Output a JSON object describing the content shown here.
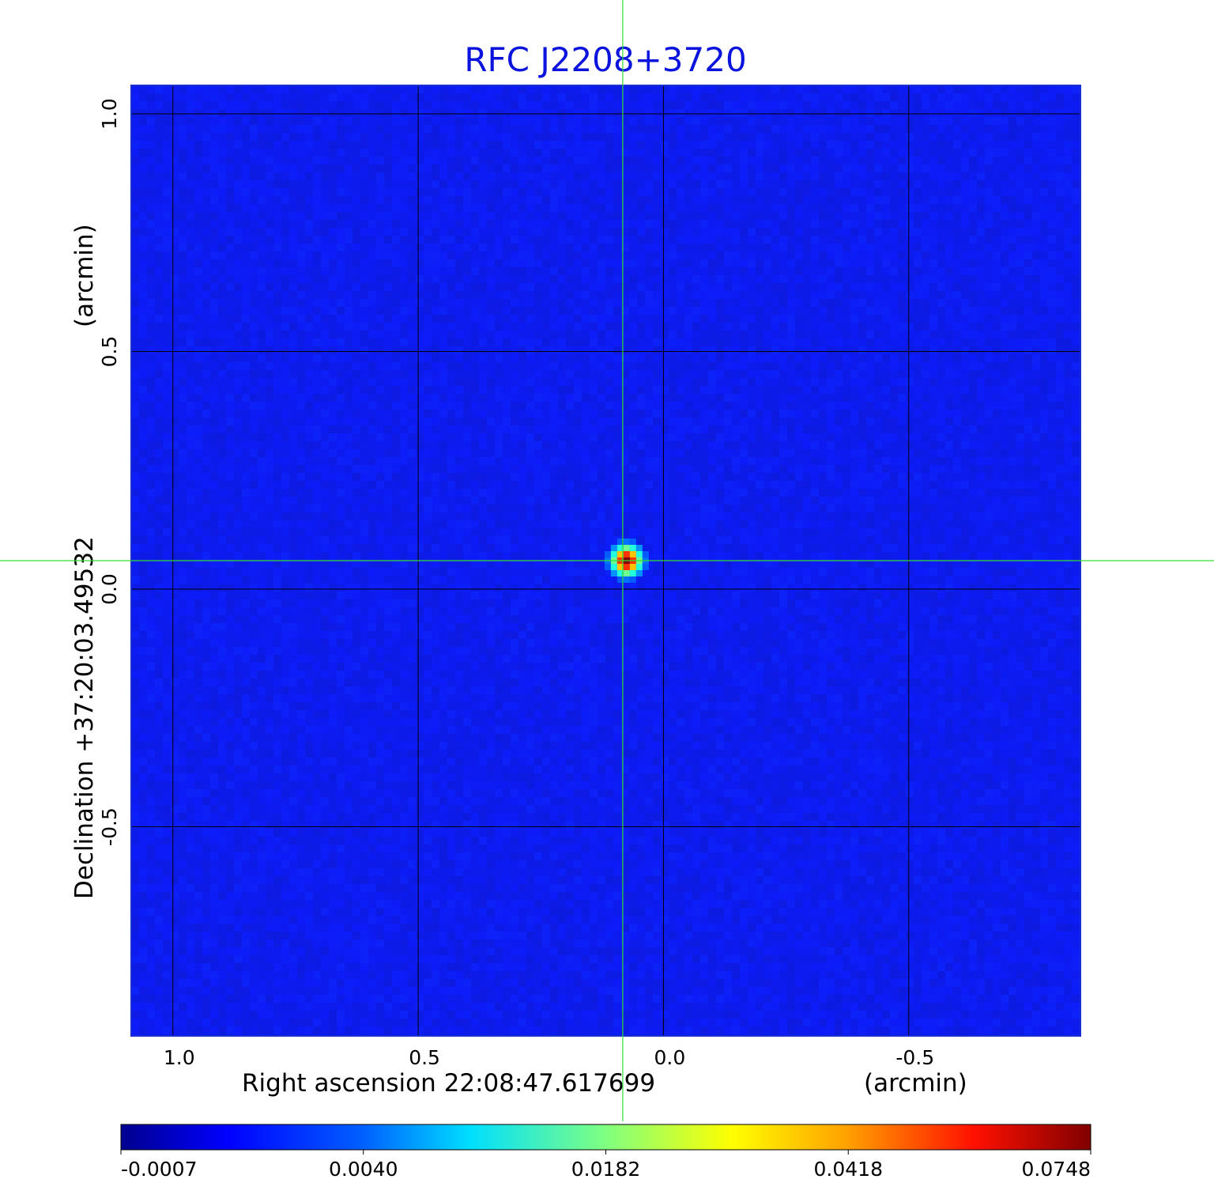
{
  "chart_data": {
    "type": "heatmap",
    "title": "RFC J2208+3720",
    "xlabel": "Right ascension  22:08:47.617699",
    "xunit": "(arcmin)",
    "ylabel": "Declination  +37:20:03.49532",
    "yunit": "(arcmin)",
    "xlim": [
      1.085,
      -0.85
    ],
    "ylim": [
      -0.94,
      1.06
    ],
    "x_ticks": [
      1.0,
      0.5,
      0.0,
      -0.5
    ],
    "x_tick_labels": [
      "1.0",
      "0.5",
      "0.0",
      "-0.5"
    ],
    "y_ticks": [
      1.0,
      0.5,
      0.0,
      -0.5
    ],
    "y_tick_labels": [
      "1.0",
      "0.5",
      "0.0",
      "-0.5"
    ],
    "grid": true,
    "crosshair": {
      "x": 0.083,
      "y": 0.06,
      "color": "#33dd33"
    },
    "source_peak": {
      "x": 0.075,
      "y": 0.06,
      "value": 0.0748
    },
    "background_level": -0.0005,
    "colorbar": {
      "colormap": "jet",
      "tick_labels": [
        "-0.0007",
        "0.0040",
        "0.0182",
        "0.0418",
        "0.0748"
      ],
      "min": -0.0007,
      "max": 0.0748
    },
    "colors": {
      "title": "#0a14dc",
      "grid": "#000000",
      "background": "#1e3cf0"
    }
  }
}
